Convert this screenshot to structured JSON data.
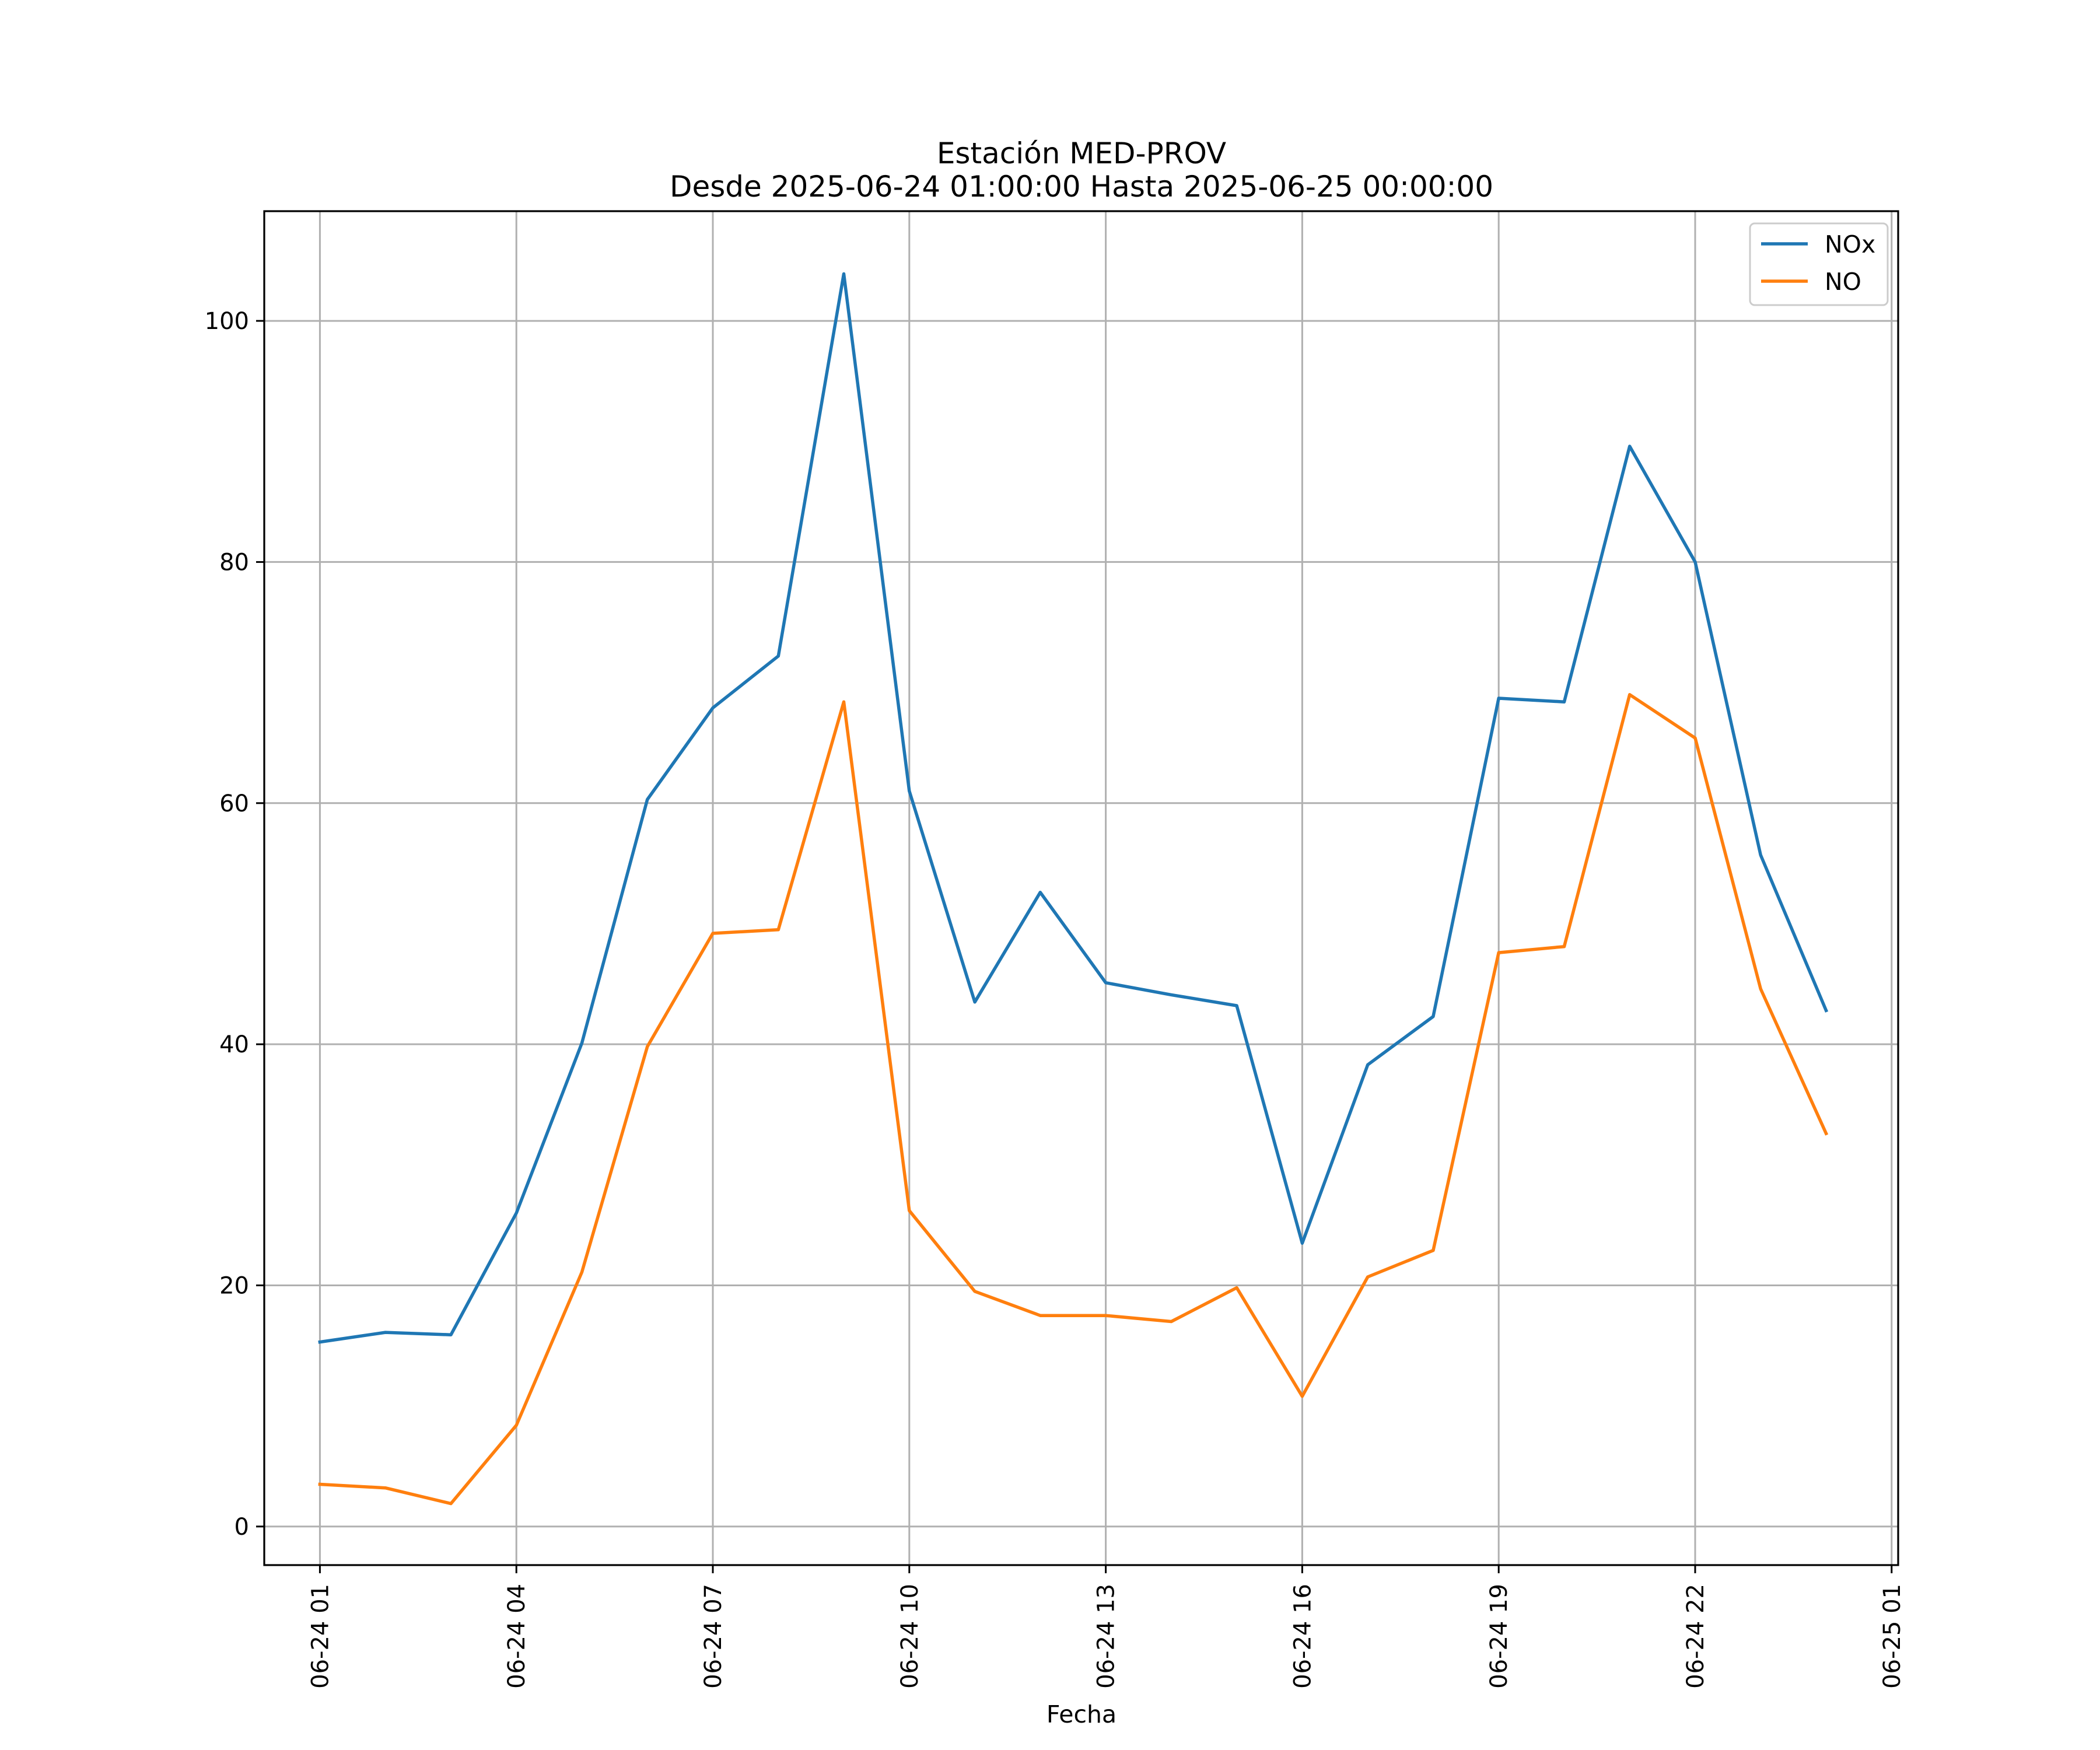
{
  "chart_data": {
    "type": "line",
    "title": "Estación MED-PROV",
    "subtitle": "Desde 2025-06-24 01:00:00 Hasta 2025-06-25 00:00:00",
    "xlabel": "Fecha",
    "ylabel": "",
    "x": [
      "2025-06-24 01:00",
      "2025-06-24 02:00",
      "2025-06-24 03:00",
      "2025-06-24 04:00",
      "2025-06-24 05:00",
      "2025-06-24 06:00",
      "2025-06-24 07:00",
      "2025-06-24 08:00",
      "2025-06-24 09:00",
      "2025-06-24 10:00",
      "2025-06-24 11:00",
      "2025-06-24 12:00",
      "2025-06-24 13:00",
      "2025-06-24 14:00",
      "2025-06-24 15:00",
      "2025-06-24 16:00",
      "2025-06-24 17:00",
      "2025-06-24 18:00",
      "2025-06-24 19:00",
      "2025-06-24 20:00",
      "2025-06-24 21:00",
      "2025-06-24 22:00",
      "2025-06-24 23:00",
      "2025-06-25 00:00"
    ],
    "series": [
      {
        "name": "NOx",
        "color": "#1f77b4",
        "values": [
          15.3,
          16.1,
          15.9,
          26.0,
          40.1,
          60.3,
          67.9,
          72.2,
          103.9,
          61.0,
          43.5,
          52.6,
          45.1,
          44.1,
          43.2,
          23.5,
          38.3,
          42.3,
          68.7,
          68.4,
          89.6,
          80.0,
          55.7,
          42.8
        ]
      },
      {
        "name": "NO",
        "color": "#ff7f0e",
        "values": [
          3.5,
          3.2,
          1.9,
          8.4,
          21.1,
          39.8,
          49.2,
          49.5,
          68.4,
          26.2,
          19.5,
          17.5,
          17.5,
          17.0,
          19.8,
          10.8,
          20.7,
          22.9,
          47.6,
          48.1,
          69.0,
          65.4,
          44.6,
          32.6
        ]
      }
    ],
    "x_ticks": [
      "06-24 01",
      "06-24 04",
      "06-24 07",
      "06-24 10",
      "06-24 13",
      "06-24 16",
      "06-24 19",
      "06-24 22",
      "06-25 01"
    ],
    "x_range": [
      "2025-06-24 00:09",
      "2025-06-25 01:06"
    ],
    "y_ticks": [
      0,
      20,
      40,
      60,
      80,
      100
    ],
    "ylim": [
      -3.2,
      109.1
    ],
    "grid": true,
    "legend": "top-right"
  }
}
